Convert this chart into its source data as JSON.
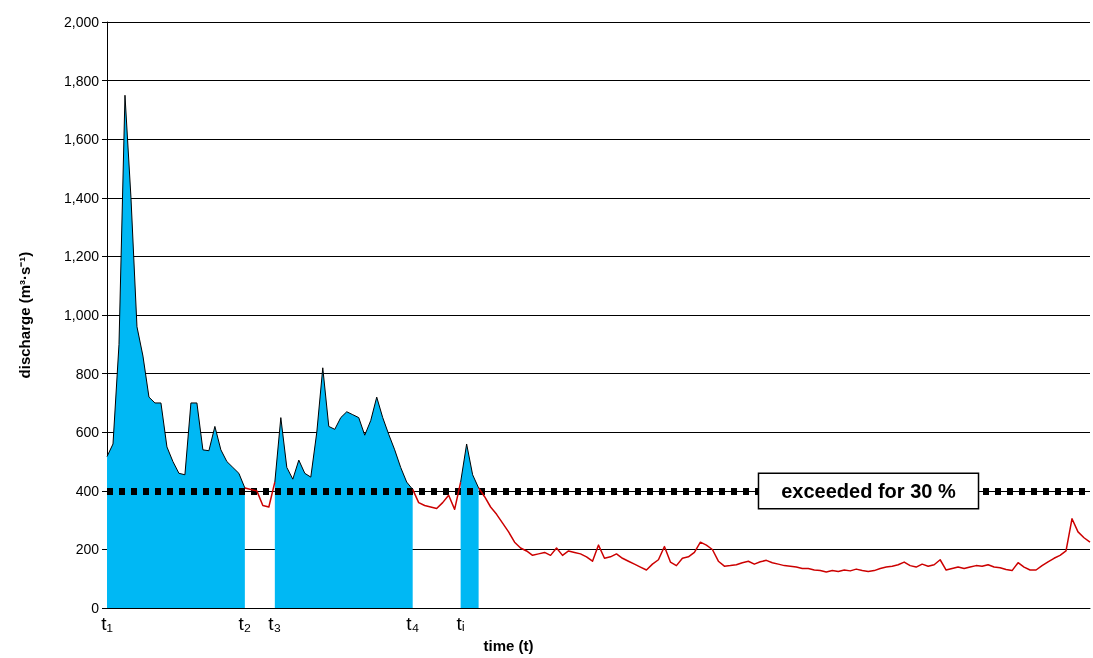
{
  "chart_data": {
    "type": "line",
    "xlabel": "time (t)",
    "ylabel": "discharge (m³·s⁻¹)",
    "categories": [
      "t₁",
      null,
      null,
      null,
      null,
      null,
      null,
      null,
      null,
      null,
      null,
      null,
      null,
      null,
      null,
      null,
      null,
      null,
      null,
      null,
      null,
      null,
      null,
      "t₂",
      null,
      null,
      null,
      null,
      "t₃",
      null,
      null,
      null,
      null,
      null,
      null,
      null,
      null,
      null,
      null,
      null,
      null,
      null,
      null,
      null,
      null,
      null,
      null,
      null,
      null,
      null,
      null,
      "t₄",
      null,
      null,
      null,
      null,
      null,
      null,
      null,
      "tᵢ",
      null,
      null,
      null,
      null,
      null,
      null,
      null,
      null,
      null,
      null,
      null,
      null,
      null,
      null,
      null,
      null,
      null,
      null,
      null,
      null,
      null,
      null,
      null,
      null,
      null,
      null,
      null,
      null,
      null,
      null,
      null,
      null,
      null,
      null,
      null,
      null,
      null,
      null,
      null,
      null,
      null,
      null,
      null,
      null,
      null,
      null,
      null,
      null,
      null,
      null,
      null,
      null,
      null,
      null,
      null,
      null,
      null,
      null,
      null,
      null,
      null,
      null,
      null,
      null,
      null,
      null,
      null,
      null,
      null,
      null,
      null,
      null,
      null,
      null,
      null,
      null,
      null,
      null,
      null,
      null,
      null,
      null,
      null,
      null,
      null,
      null,
      null,
      null,
      null,
      null,
      null,
      null,
      null,
      null,
      null,
      null,
      null,
      null,
      null,
      null,
      null,
      null,
      null,
      null,
      null
    ],
    "series": [
      {
        "type": "area",
        "color": "#00b8f4",
        "values": [
          517,
          560,
          900,
          1750,
          1400,
          960,
          860,
          720,
          700,
          700,
          550,
          500,
          460,
          455,
          700,
          700,
          540,
          537,
          620,
          540,
          500,
          480,
          460,
          410,
          null,
          null,
          null,
          null,
          430,
          650,
          480,
          440,
          505,
          460,
          447,
          600,
          820,
          620,
          610,
          650,
          670,
          660,
          650,
          590,
          640,
          720,
          650,
          593,
          540,
          480,
          430,
          405,
          null,
          null,
          null,
          null,
          null,
          null,
          null,
          430,
          560,
          455,
          410,
          null,
          null,
          null,
          null,
          null,
          null,
          null,
          null,
          null,
          null,
          null,
          null,
          null,
          null,
          null,
          null,
          null,
          null,
          null,
          null,
          null,
          null,
          null,
          null,
          null,
          null,
          null,
          null,
          null,
          null,
          null,
          null,
          null,
          null,
          null,
          null,
          null,
          null,
          null,
          null,
          null,
          null,
          null,
          null,
          null,
          null,
          null,
          null,
          null,
          null,
          null,
          null,
          null,
          null,
          null,
          null,
          null,
          null,
          null,
          null,
          null,
          null,
          null,
          null,
          null,
          null,
          null,
          null,
          null,
          null,
          null,
          null,
          null,
          null,
          null,
          null,
          null,
          null,
          null,
          null,
          null,
          null,
          null,
          null,
          null,
          null,
          null,
          null,
          null,
          null,
          null,
          null,
          null,
          null,
          null,
          null,
          null,
          null,
          null,
          null,
          null,
          null
        ]
      },
      {
        "type": "line",
        "color": "#cc0000",
        "values": [
          null,
          null,
          null,
          null,
          null,
          null,
          null,
          null,
          null,
          null,
          null,
          null,
          null,
          null,
          null,
          null,
          null,
          null,
          null,
          null,
          null,
          null,
          null,
          410,
          405,
          400,
          350,
          345,
          430,
          null,
          null,
          null,
          null,
          null,
          null,
          null,
          null,
          null,
          null,
          null,
          null,
          null,
          null,
          null,
          null,
          null,
          null,
          null,
          null,
          null,
          null,
          405,
          360,
          350,
          345,
          340,
          360,
          385,
          337,
          430,
          null,
          null,
          410,
          380,
          345,
          320,
          290,
          260,
          225,
          205,
          195,
          180,
          185,
          190,
          180,
          205,
          180,
          195,
          190,
          185,
          175,
          160,
          215,
          170,
          175,
          185,
          170,
          160,
          150,
          140,
          130,
          150,
          165,
          210,
          157,
          145,
          170,
          175,
          190,
          225,
          215,
          200,
          160,
          143,
          145,
          148,
          155,
          160,
          150,
          158,
          163,
          155,
          150,
          145,
          143,
          140,
          135,
          135,
          130,
          128,
          123,
          128,
          125,
          130,
          127,
          133,
          128,
          125,
          128,
          135,
          140,
          143,
          148,
          157,
          145,
          140,
          150,
          143,
          148,
          165,
          130,
          135,
          140,
          135,
          140,
          145,
          143,
          148,
          140,
          138,
          132,
          128,
          155,
          140,
          130,
          130,
          145,
          158,
          170,
          180,
          195,
          305,
          260,
          240,
          225
        ]
      }
    ],
    "ylim": [
      0,
      2000
    ],
    "yticks": [
      0,
      200,
      400,
      600,
      800,
      {
        "value": 1000,
        "label": "1,000"
      },
      {
        "value": 1200,
        "label": "1,200"
      },
      {
        "value": 1400,
        "label": "1,400"
      },
      {
        "value": 1600,
        "label": "1,600"
      },
      {
        "value": 1800,
        "label": "1,800"
      },
      {
        "value": 2000,
        "label": "2,000"
      }
    ],
    "grid": "y",
    "marker": "none",
    "ref_lines": [
      {
        "axis": "y",
        "value": 400,
        "label": "exceeded for 30 %",
        "color": "#000000",
        "line_style": "dotted"
      }
    ]
  }
}
